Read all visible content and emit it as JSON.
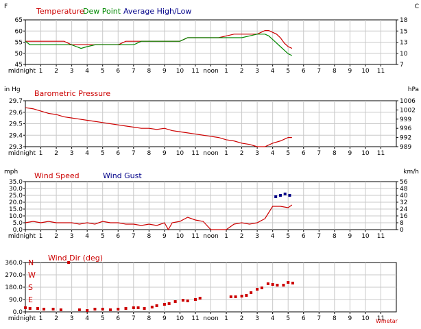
{
  "colors": {
    "red": "#cc0000",
    "green": "#008800",
    "blue": "#000088",
    "grid": "#c8c8c8"
  },
  "x_ticks": [
    "midnight",
    "1",
    "2",
    "3",
    "4",
    "5",
    "6",
    "7",
    "8",
    "9",
    "10",
    "11",
    "noon",
    "1",
    "2",
    "3",
    "4",
    "5",
    "6",
    "7",
    "8",
    "9",
    "10",
    "11"
  ],
  "watermark": "Wmetar",
  "chart_data": [
    {
      "type": "line",
      "left_unit": "F",
      "right_unit": "C",
      "legend": [
        "Temperature",
        "Dew Point",
        "Average High/Low"
      ],
      "ylim": [
        45,
        70
      ],
      "y_ticks_left": [
        "65",
        "60",
        "55",
        "50",
        "45"
      ],
      "y_ticks_right": [
        "18",
        "15",
        "13",
        "10",
        "7"
      ],
      "series": [
        {
          "name": "Temperature",
          "color": "red",
          "x": [
            0,
            0.5,
            1,
            1.5,
            2,
            2.5,
            3,
            3.3,
            3.6,
            4,
            4.5,
            5,
            5.5,
            6,
            6.5,
            7,
            7.5,
            8,
            8.5,
            9,
            9.5,
            10,
            10.5,
            11,
            11.5,
            12,
            12.5,
            13,
            13.5,
            14,
            14.5,
            15,
            15.25,
            15.5,
            15.75,
            16,
            16.25,
            16.5,
            16.75,
            17,
            17.25
          ],
          "y": [
            58,
            58,
            58,
            58,
            58,
            58,
            56,
            56,
            56,
            56,
            56,
            56,
            56,
            56,
            58,
            58,
            58,
            58,
            58,
            58,
            58,
            58,
            60,
            60,
            60,
            60,
            60,
            61,
            62,
            62,
            62,
            62,
            63,
            64,
            64,
            63,
            62,
            60,
            57,
            55,
            54
          ]
        },
        {
          "name": "Dew Point",
          "color": "green",
          "x": [
            0,
            0.3,
            1,
            1.5,
            2,
            2.5,
            3,
            3.3,
            3.6,
            4,
            4.5,
            5,
            5.5,
            6,
            6.5,
            7,
            7.5,
            8,
            8.5,
            9,
            9.5,
            10,
            10.5,
            11,
            11.5,
            12,
            12.5,
            13,
            13.5,
            14,
            14.5,
            15,
            15.25,
            15.5,
            15.75,
            16,
            16.25,
            16.5,
            16.75,
            17,
            17.25
          ],
          "y": [
            58,
            56,
            56,
            56,
            56,
            56,
            56,
            55,
            54,
            55,
            56,
            56,
            56,
            56,
            56,
            56,
            58,
            58,
            58,
            58,
            58,
            58,
            60,
            60,
            60,
            60,
            60,
            60,
            60,
            60,
            61,
            62,
            62,
            62,
            61,
            59,
            57,
            55,
            53,
            51,
            50
          ]
        }
      ]
    },
    {
      "type": "line",
      "left_unit": "in Hg",
      "right_unit": "hPa",
      "legend": [
        "Barometric Pressure"
      ],
      "ylim": [
        29.3,
        29.7
      ],
      "y_ticks_left": [
        "29.7",
        "29.6",
        "29.5",
        "29.4",
        "29.3"
      ],
      "y_ticks_right": [
        "1006",
        "1002",
        "999",
        "996",
        "992",
        "989"
      ],
      "series": [
        {
          "name": "Barometric Pressure",
          "color": "red",
          "x": [
            0,
            0.5,
            1,
            1.5,
            2,
            2.5,
            3,
            3.5,
            4,
            4.5,
            5,
            5.5,
            6,
            6.5,
            7,
            7.5,
            8,
            8.5,
            9,
            9.5,
            10,
            10.5,
            11,
            11.5,
            12,
            12.5,
            13,
            13.5,
            14,
            14.5,
            15,
            15.5,
            16,
            16.5,
            17,
            17.25
          ],
          "y": [
            29.64,
            29.63,
            29.61,
            29.59,
            29.58,
            29.56,
            29.55,
            29.54,
            29.53,
            29.52,
            29.51,
            29.5,
            29.49,
            29.48,
            29.47,
            29.46,
            29.46,
            29.45,
            29.46,
            29.44,
            29.43,
            29.42,
            29.41,
            29.4,
            29.39,
            29.38,
            29.36,
            29.35,
            29.33,
            29.32,
            29.3,
            29.3,
            29.33,
            29.35,
            29.38,
            29.38
          ]
        }
      ]
    },
    {
      "type": "line",
      "left_unit": "mph",
      "right_unit": "km/h",
      "legend": [
        "Wind Speed",
        "Wind Gust"
      ],
      "ylim": [
        0,
        35
      ],
      "y_ticks_left": [
        "35.0",
        "30.0",
        "25.0",
        "20.0",
        "15.0",
        "10.0",
        "5.0",
        "0.0"
      ],
      "y_ticks_right": [
        "56",
        "48",
        "40",
        "32",
        "24",
        "16",
        "8",
        "0"
      ],
      "series": [
        {
          "name": "Wind Speed",
          "color": "red",
          "x": [
            0,
            0.5,
            1,
            1.5,
            2,
            2.5,
            3,
            3.5,
            4,
            4.5,
            5,
            5.5,
            6,
            6.5,
            7,
            7.5,
            8,
            8.5,
            9,
            9.25,
            9.5,
            10,
            10.5,
            11,
            11.5,
            12,
            12.5,
            13,
            13.5,
            14,
            14.5,
            15,
            15.5,
            16,
            16.5,
            17,
            17.25
          ],
          "y": [
            5,
            6,
            5,
            6,
            5,
            5,
            5,
            4,
            5,
            4,
            6,
            5,
            5,
            4,
            4,
            3,
            4,
            3,
            5,
            0,
            5,
            6,
            9,
            7,
            6,
            0,
            0,
            0,
            4,
            5,
            4,
            5,
            8,
            17,
            17,
            16,
            18
          ]
        },
        {
          "name": "Wind Gust",
          "color": "blue",
          "mode": "dots",
          "x": [
            16.2,
            16.5,
            16.8,
            17.1
          ],
          "y": [
            24,
            25,
            26,
            25
          ]
        }
      ]
    },
    {
      "type": "scatter",
      "left_unit": "",
      "legend": [
        "Wind Dir (deg)"
      ],
      "ylim": [
        0,
        360
      ],
      "compass": [
        "N",
        "W",
        "S",
        "E"
      ],
      "y_ticks_left": [
        "360.0",
        "270.0",
        "180.0",
        "90.0",
        "0.0"
      ],
      "series": [
        {
          "name": "Wind Dir (deg)",
          "color": "red",
          "x": [
            0,
            0.3,
            0.8,
            1.2,
            1.8,
            2.3,
            2.8,
            3.5,
            4,
            4.5,
            5,
            5.5,
            6,
            6.5,
            7,
            7.3,
            7.7,
            8.2,
            8.5,
            9,
            9.3,
            9.7,
            10.2,
            10.5,
            11,
            11.3,
            13.3,
            13.6,
            14,
            14.3,
            14.6,
            15,
            15.3,
            15.7,
            16,
            16.3,
            16.7,
            17,
            17.3
          ],
          "y": [
            30,
            25,
            25,
            20,
            20,
            15,
            360,
            15,
            10,
            20,
            20,
            15,
            20,
            25,
            30,
            30,
            25,
            35,
            45,
            55,
            60,
            75,
            85,
            80,
            90,
            100,
            110,
            110,
            115,
            120,
            140,
            165,
            175,
            205,
            200,
            195,
            195,
            215,
            210
          ]
        }
      ]
    }
  ]
}
